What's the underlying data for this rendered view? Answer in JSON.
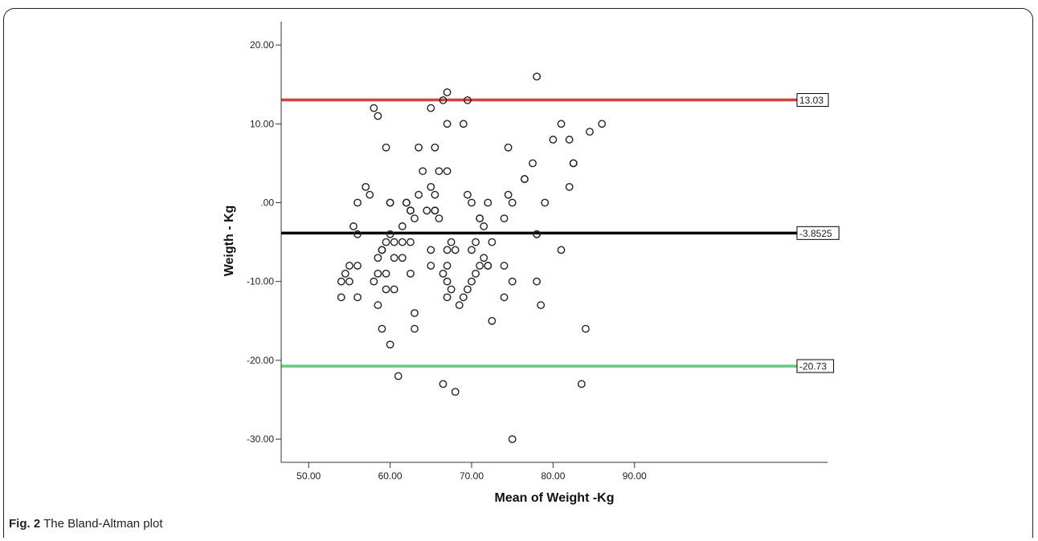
{
  "figure": {
    "caption_label": "Fig. 2",
    "caption_text": "The Bland-Altman plot"
  },
  "chart_data": {
    "type": "scatter",
    "title": "",
    "xlabel": "Mean of Weight -Kg",
    "ylabel": "Weigth - Kg",
    "xlim": [
      48,
      94
    ],
    "ylim": [
      -33,
      23
    ],
    "x_ticks": [
      "50.00",
      "60.00",
      "70.00",
      "80.00",
      "90.00"
    ],
    "y_ticks": [
      "-30.00",
      "-20.00",
      "-10.00",
      ".00",
      "10.00",
      "20.00"
    ],
    "x_tick_values": [
      50,
      60,
      70,
      80,
      90
    ],
    "y_tick_values": [
      -30,
      -20,
      -10,
      0,
      10,
      20
    ],
    "grid": false,
    "reference_lines": [
      {
        "label": "13.03",
        "value": 13.03,
        "color": "#e53935"
      },
      {
        "label": "-3.8525",
        "value": -3.8525,
        "color": "#000000"
      },
      {
        "label": "-20.73",
        "value": -20.73,
        "color": "#5fd07a"
      }
    ],
    "points": [
      [
        54,
        -10
      ],
      [
        54,
        -12
      ],
      [
        54.5,
        -9
      ],
      [
        55,
        -8
      ],
      [
        55,
        -10
      ],
      [
        55.5,
        -3
      ],
      [
        56,
        0
      ],
      [
        56,
        -4
      ],
      [
        56,
        -8
      ],
      [
        56,
        -12
      ],
      [
        57,
        2
      ],
      [
        57.5,
        1
      ],
      [
        58,
        12
      ],
      [
        58,
        -10
      ],
      [
        58.5,
        11
      ],
      [
        58.5,
        -7
      ],
      [
        58.5,
        -9
      ],
      [
        58.5,
        -13
      ],
      [
        59,
        -6
      ],
      [
        59,
        -6
      ],
      [
        59,
        -16
      ],
      [
        59.5,
        7
      ],
      [
        59.5,
        -5
      ],
      [
        59.5,
        -9
      ],
      [
        59.5,
        -11
      ],
      [
        60,
        0
      ],
      [
        60,
        0
      ],
      [
        60,
        -4
      ],
      [
        60,
        -18
      ],
      [
        60.5,
        -5
      ],
      [
        60.5,
        -7
      ],
      [
        60.5,
        -11
      ],
      [
        61,
        -22
      ],
      [
        61.5,
        -3
      ],
      [
        61.5,
        -5
      ],
      [
        61.5,
        -7
      ],
      [
        62,
        0
      ],
      [
        62,
        0
      ],
      [
        62.5,
        -1
      ],
      [
        62.5,
        -1
      ],
      [
        62.5,
        -5
      ],
      [
        62.5,
        -9
      ],
      [
        63,
        -2
      ],
      [
        63,
        -14
      ],
      [
        63,
        -16
      ],
      [
        63.5,
        7
      ],
      [
        63.5,
        1
      ],
      [
        64,
        4
      ],
      [
        64.5,
        -1
      ],
      [
        65,
        12
      ],
      [
        65,
        2
      ],
      [
        65,
        -6
      ],
      [
        65,
        -8
      ],
      [
        65.5,
        7
      ],
      [
        65.5,
        1
      ],
      [
        65.5,
        -1
      ],
      [
        65.5,
        -1
      ],
      [
        66,
        4
      ],
      [
        66,
        -2
      ],
      [
        66.5,
        13
      ],
      [
        66.5,
        -9
      ],
      [
        66.5,
        -23
      ],
      [
        67,
        14
      ],
      [
        67,
        10
      ],
      [
        67,
        4
      ],
      [
        67,
        -6
      ],
      [
        67,
        -8
      ],
      [
        67,
        -10
      ],
      [
        67,
        -12
      ],
      [
        67.5,
        -5
      ],
      [
        67.5,
        -11
      ],
      [
        68,
        -6
      ],
      [
        68,
        -24
      ],
      [
        68.5,
        -13
      ],
      [
        69,
        10
      ],
      [
        69,
        -12
      ],
      [
        69.5,
        13
      ],
      [
        69.5,
        1
      ],
      [
        69.5,
        -11
      ],
      [
        70,
        0
      ],
      [
        70,
        -6
      ],
      [
        70,
        -10
      ],
      [
        70.5,
        -5
      ],
      [
        70.5,
        -9
      ],
      [
        71,
        -2
      ],
      [
        71,
        -2
      ],
      [
        71,
        -8
      ],
      [
        71.5,
        -3
      ],
      [
        71.5,
        -7
      ],
      [
        72,
        0
      ],
      [
        72,
        -8
      ],
      [
        72,
        -8
      ],
      [
        72.5,
        -5
      ],
      [
        72.5,
        -15
      ],
      [
        74,
        -2
      ],
      [
        74,
        -8
      ],
      [
        74,
        -12
      ],
      [
        74.5,
        7
      ],
      [
        74.5,
        1
      ],
      [
        75,
        0
      ],
      [
        75,
        -10
      ],
      [
        75,
        -30
      ],
      [
        76.5,
        3
      ],
      [
        76.5,
        3
      ],
      [
        77.5,
        5
      ],
      [
        78,
        16
      ],
      [
        78,
        -4
      ],
      [
        78,
        -4
      ],
      [
        78,
        -10
      ],
      [
        78.5,
        -13
      ],
      [
        79,
        0
      ],
      [
        80,
        8
      ],
      [
        81,
        10
      ],
      [
        81,
        -6
      ],
      [
        82,
        8
      ],
      [
        82,
        2
      ],
      [
        82.5,
        5
      ],
      [
        82.5,
        5
      ],
      [
        83.5,
        -23
      ],
      [
        84,
        -16
      ],
      [
        84.5,
        9
      ],
      [
        86,
        10
      ]
    ]
  }
}
